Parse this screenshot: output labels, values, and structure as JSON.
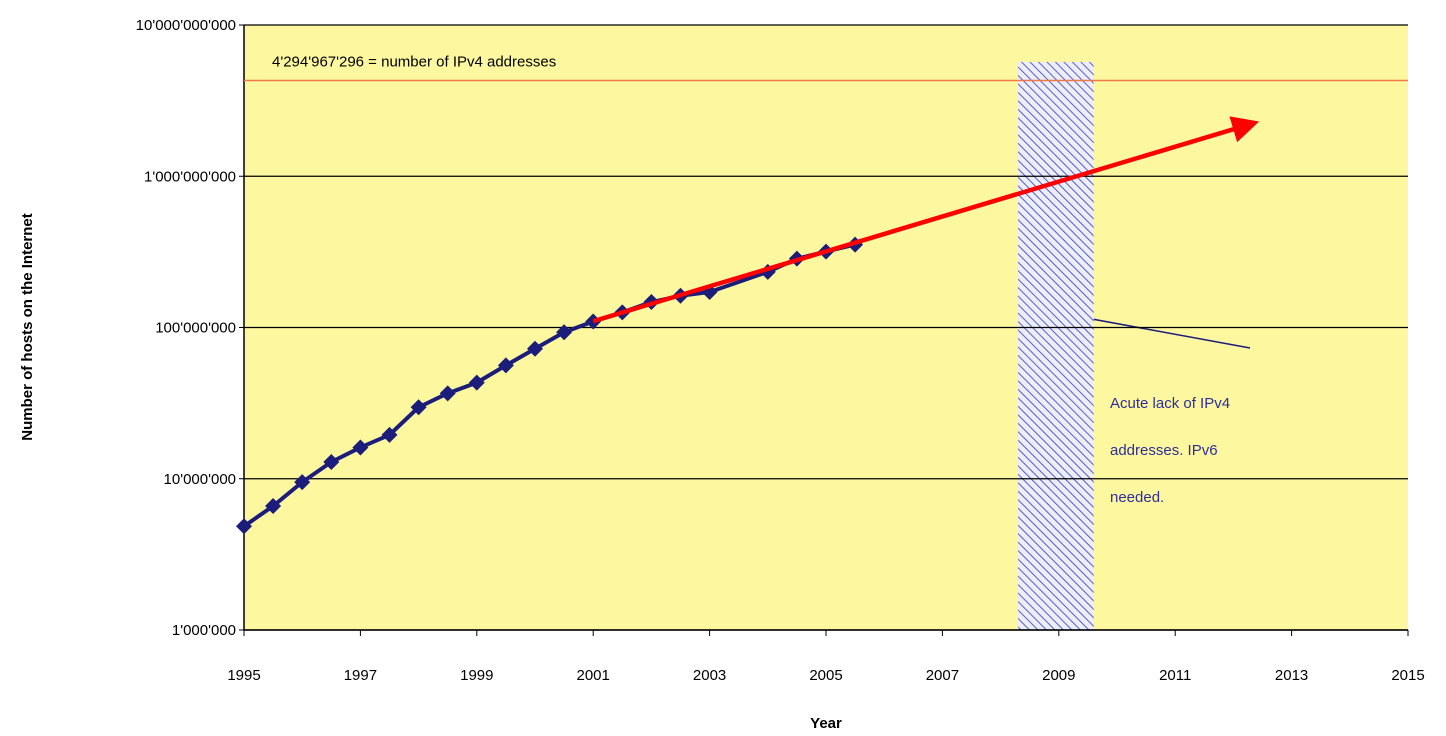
{
  "chart_data": {
    "type": "line",
    "xlabel": "Year",
    "ylabel": "Number of hosts on the Internet",
    "log_y": true,
    "grid": true,
    "xlim": [
      1995,
      2015
    ],
    "xticks": [
      1995,
      1997,
      1999,
      2001,
      2003,
      2005,
      2007,
      2009,
      2011,
      2013,
      2015
    ],
    "ylim": [
      1000000,
      10000000000
    ],
    "yticks": [
      {
        "value": 1000000,
        "label": "1'000'000"
      },
      {
        "value": 10000000,
        "label": "10'000'000"
      },
      {
        "value": 100000000,
        "label": "100'000'000"
      },
      {
        "value": 1000000000,
        "label": "1'000'000'000"
      },
      {
        "value": 10000000000,
        "label": "10'000'000'000"
      }
    ],
    "x": [
      1995,
      1995.5,
      1996,
      1996.5,
      1997,
      1997.5,
      1998,
      1998.5,
      1999,
      1999.5,
      2000,
      2000.5,
      2001,
      2001.5,
      2002,
      2002.5,
      2003,
      2004,
      2004.5,
      2005,
      2005.5
    ],
    "series": [
      {
        "color": "#1c1c7a",
        "values": [
          4850000,
          6600000,
          9500000,
          12900000,
          16100000,
          19500000,
          29700000,
          36700000,
          43200000,
          56200000,
          72400000,
          93000000,
          109600000,
          125900000,
          147300000,
          162100000,
          171600000,
          233100000,
          285100000,
          317600000,
          353300000
        ]
      }
    ],
    "trend": {
      "color": "#ff0000",
      "x": [
        2001,
        2012.5
      ],
      "values": [
        110000000,
        2350000000
      ]
    },
    "reference_line": {
      "value": 4294967296,
      "label": "4'294'967'296 = number of IPv4 addresses",
      "color": "#f07848"
    },
    "band": {
      "x": [
        2008.3,
        2009.6
      ],
      "top": 5700000000
    },
    "annotation": [
      "Acute lack of IPv4",
      "addresses. IPv6",
      "needed."
    ]
  }
}
